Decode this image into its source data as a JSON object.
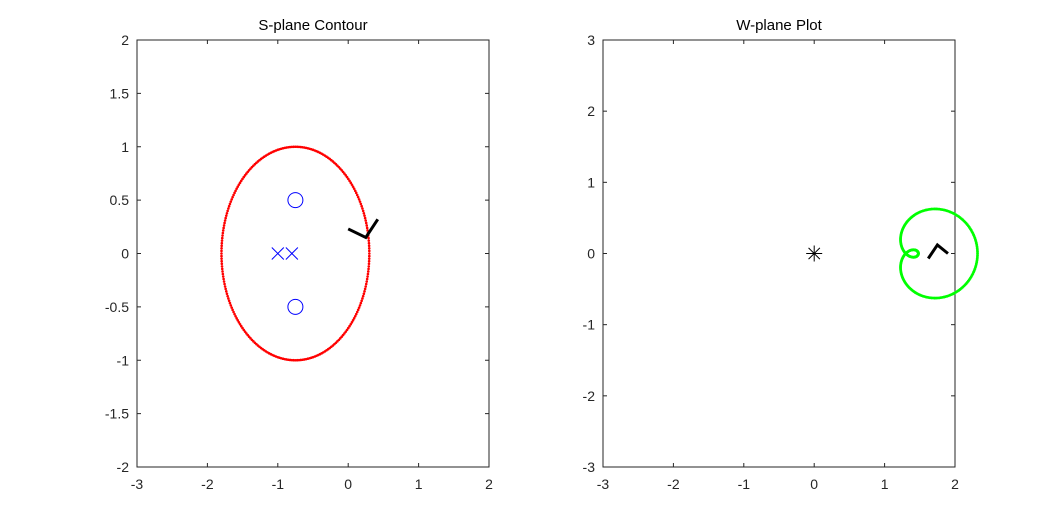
{
  "chart_data": [
    {
      "type": "scatter",
      "title": "S-plane Contour",
      "xlabel": "",
      "ylabel": "",
      "xlim": [
        -3,
        2
      ],
      "ylim": [
        -2,
        2
      ],
      "xticks": [
        -3,
        -2,
        -1,
        0,
        1,
        2
      ],
      "yticks": [
        -2,
        -1.5,
        -1,
        -0.5,
        0,
        0.5,
        1,
        1.5,
        2
      ],
      "xtick_labels": [
        "-3",
        "-2",
        "-1",
        "0",
        "1",
        "2"
      ],
      "ytick_labels": [
        "-2",
        "-1.5",
        "-1",
        "-0.5",
        "0",
        "0.5",
        "1",
        "1.5",
        "2"
      ],
      "grid": false,
      "series": [
        {
          "kind": "contour-ellipse",
          "color": "#ff0000",
          "center": [
            -0.75,
            0
          ],
          "radii": [
            1.05,
            1.0
          ],
          "points": 260
        },
        {
          "kind": "markers",
          "marker": "circle",
          "color": "#0000ff",
          "points": [
            [
              -0.75,
              0.5
            ],
            [
              -0.75,
              -0.5
            ]
          ]
        },
        {
          "kind": "markers",
          "marker": "x",
          "color": "#0000ff",
          "points": [
            [
              -1.0,
              0
            ],
            [
              -0.8,
              0
            ]
          ]
        },
        {
          "kind": "arrow",
          "color": "#000000",
          "points": [
            [
              0.0,
              0.23
            ],
            [
              0.25,
              0.15
            ],
            [
              0.42,
              0.32
            ]
          ]
        }
      ]
    },
    {
      "type": "scatter",
      "title": "W-plane Plot",
      "xlabel": "",
      "ylabel": "",
      "xlim": [
        -3,
        2
      ],
      "ylim": [
        -3,
        3
      ],
      "xticks": [
        -3,
        -2,
        -1,
        0,
        1,
        2
      ],
      "yticks": [
        -3,
        -2,
        -1,
        0,
        1,
        2,
        3
      ],
      "xtick_labels": [
        "-3",
        "-2",
        "-1",
        "0",
        "1",
        "2"
      ],
      "ytick_labels": [
        "-3",
        "-2",
        "-1",
        "0",
        "1",
        "2",
        "3"
      ],
      "grid": false,
      "series": [
        {
          "kind": "limacon",
          "color": "#00ff00",
          "center": [
            1.3,
            0
          ],
          "a": 0.42,
          "b": 0.6,
          "points": 260
        },
        {
          "kind": "markers",
          "marker": "asterisk",
          "color": "#000000",
          "points": [
            [
              0,
              0
            ]
          ]
        },
        {
          "kind": "arrow",
          "color": "#000000",
          "points": [
            [
              1.62,
              -0.07
            ],
            [
              1.75,
              0.12
            ],
            [
              1.9,
              0.0
            ]
          ]
        }
      ]
    }
  ]
}
